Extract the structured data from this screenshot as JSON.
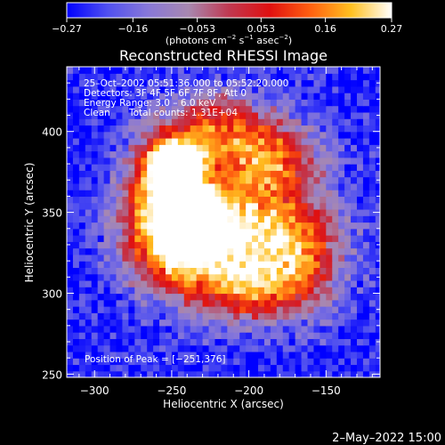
{
  "chart_data": {
    "type": "heatmap",
    "title": "Reconstructed RHESSI Image",
    "xlabel": "Heliocentric X (arcsec)",
    "ylabel": "Heliocentric Y (arcsec)",
    "xlim": [
      -318,
      -115
    ],
    "ylim": [
      248,
      440
    ],
    "xticks": [
      -300,
      -250,
      -200,
      -150
    ],
    "yticks": [
      250,
      300,
      350,
      400
    ],
    "xtick_labels": [
      "−300",
      "−250",
      "−200",
      "−150"
    ],
    "ytick_labels": [
      "250",
      "300",
      "350",
      "400"
    ],
    "colorbar": {
      "range": [
        -0.27,
        0.27
      ],
      "ticks": [
        -0.27,
        -0.16,
        -0.053,
        0.053,
        0.16,
        0.27
      ],
      "tick_labels": [
        "−0.27",
        "−0.16",
        "−0.053",
        "0.053",
        "0.16",
        "0.27"
      ],
      "unit_main": "(photons cm",
      "unit_sup1": "−2",
      "unit_mid": " s",
      "unit_sup2": "−1",
      "unit_mid2": " asec",
      "unit_sup3": "−2",
      "unit_end": ")",
      "colors": [
        "#0000ff",
        "#5050f0",
        "#8878d8",
        "#a888b0",
        "#c03850",
        "#e01010",
        "#ff6010",
        "#ffc020",
        "#ffffff"
      ]
    },
    "annotations": {
      "time_range": "25–Oct–2002 05:51:36.000 to 05:52:20.000",
      "detectors": "Detectors: 3F 4F 5F 6F 7F 8F, Att 0",
      "energy_range": "Energy Range: 3.0 – 6.0 keV",
      "clean": "Clean",
      "total_counts": "Total counts: 1.31E+04",
      "peak": "Position of Peak = [−251,376]"
    },
    "peak": {
      "x": -251,
      "y": 376
    },
    "blobs": [
      {
        "x": -249,
        "y": 378,
        "sx": 12,
        "sy": 12,
        "a": 1.05
      },
      {
        "x": -212,
        "y": 340,
        "sx": 38,
        "sy": 28,
        "a": 0.78
      },
      {
        "x": -243,
        "y": 328,
        "sx": 22,
        "sy": 20,
        "a": 0.6
      },
      {
        "x": -222,
        "y": 402,
        "sx": 24,
        "sy": 16,
        "a": 0.62
      },
      {
        "x": -182,
        "y": 384,
        "sx": 20,
        "sy": 16,
        "a": 0.52
      },
      {
        "x": -168,
        "y": 322,
        "sx": 20,
        "sy": 22,
        "a": 0.5
      },
      {
        "x": -262,
        "y": 360,
        "sx": 16,
        "sy": 24,
        "a": 0.45
      },
      {
        "x": -200,
        "y": 300,
        "sx": 22,
        "sy": 14,
        "a": 0.4
      },
      {
        "x": -236,
        "y": 356,
        "sx": 14,
        "sy": 12,
        "a": 0.35
      }
    ]
  },
  "footer_date": "2–May–2022 15:00"
}
